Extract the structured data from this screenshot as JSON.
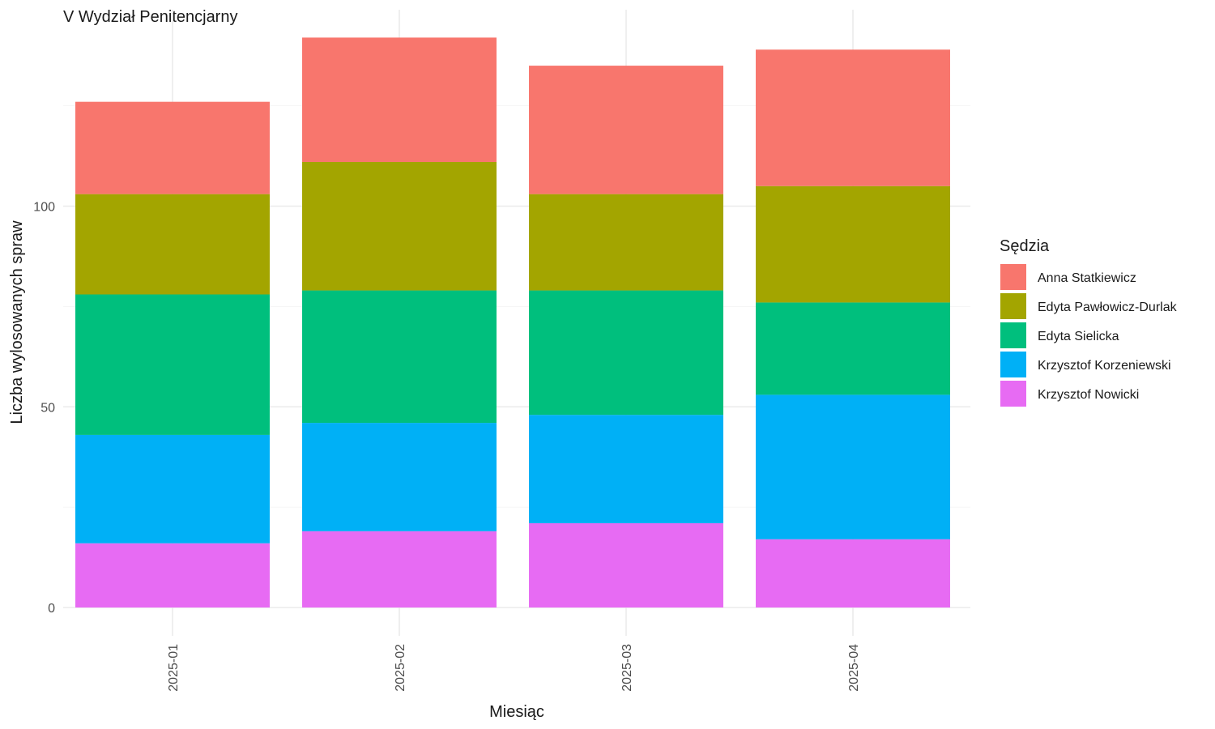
{
  "chart_data": {
    "type": "bar",
    "stacked": true,
    "title": "V Wydział Penitencjarny",
    "xlabel": "Miesiąc",
    "ylabel": "Liczba wylosowanych spraw",
    "categories": [
      "2025-01",
      "2025-02",
      "2025-03",
      "2025-04"
    ],
    "yticks": [
      0,
      50,
      100
    ],
    "ylim": [
      0,
      145
    ],
    "grid": true,
    "legend": {
      "title": "Sędzia",
      "position": "right"
    },
    "series": [
      {
        "name": "Krzysztof Nowicki",
        "color": "#E76BF3",
        "values": [
          16,
          19,
          21,
          17
        ]
      },
      {
        "name": "Krzysztof Korzeniewski",
        "color": "#00B0F6",
        "values": [
          27,
          27,
          27,
          36
        ]
      },
      {
        "name": "Edyta Sielicka",
        "color": "#00BF7D",
        "values": [
          35,
          33,
          31,
          23
        ]
      },
      {
        "name": "Edyta Pawłowicz-Durlak",
        "color": "#A3A500",
        "values": [
          25,
          32,
          24,
          29
        ]
      },
      {
        "name": "Anna Statkiewicz",
        "color": "#F8766D",
        "values": [
          23,
          31,
          32,
          34
        ]
      }
    ],
    "legend_order": [
      "Anna Statkiewicz",
      "Edyta Pawłowicz-Durlak",
      "Edyta Sielicka",
      "Krzysztof Korzeniewski",
      "Krzysztof Nowicki"
    ]
  }
}
